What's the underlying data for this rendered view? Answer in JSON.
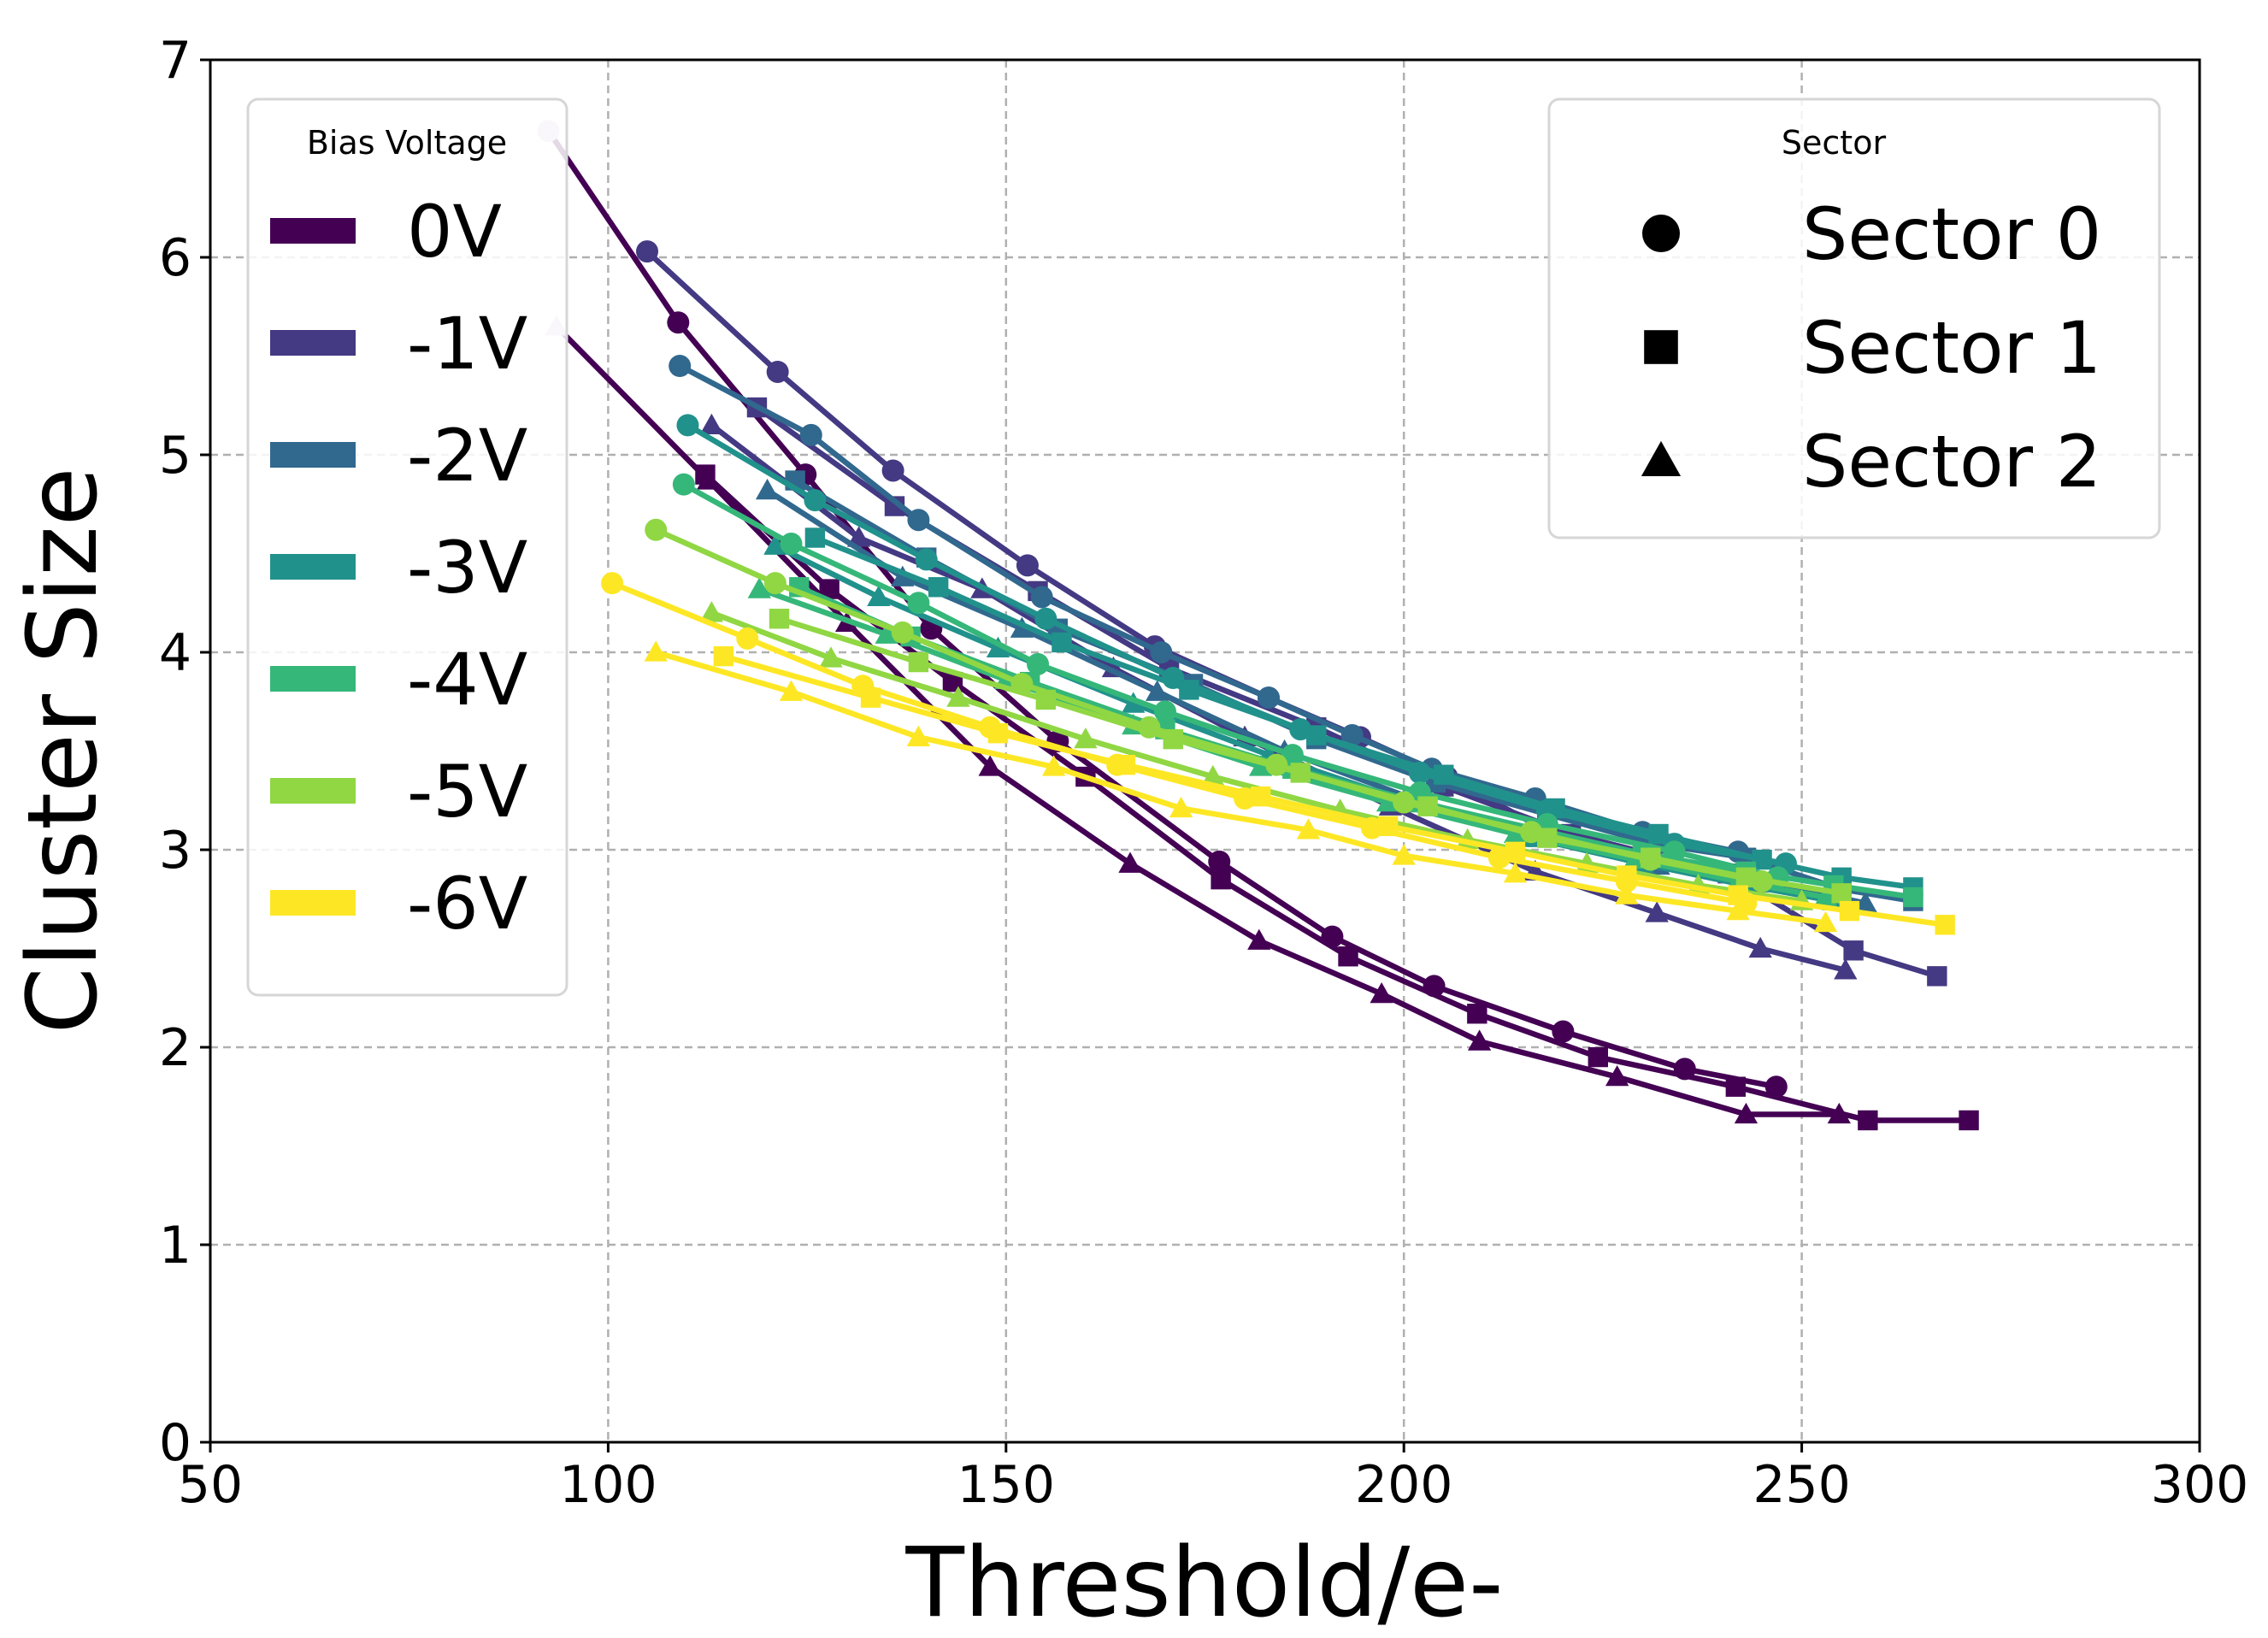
{
  "chart_data": {
    "type": "line",
    "xlabel": "Threshold/e-",
    "ylabel": "Cluster Size",
    "xlim": [
      50,
      300
    ],
    "ylim": [
      0,
      7
    ],
    "xticks": [
      "50",
      "100",
      "150",
      "200",
      "250",
      "300"
    ],
    "yticks": [
      "0",
      "1",
      "2",
      "3",
      "4",
      "5",
      "6",
      "7"
    ],
    "grid": true,
    "legends": [
      {
        "title": "Bias Voltage",
        "placement": "top-left",
        "entries": [
          {
            "label": "0V",
            "color": "#440154"
          },
          {
            "label": "-1V",
            "color": "#443983"
          },
          {
            "label": "-2V",
            "color": "#31688e"
          },
          {
            "label": "-3V",
            "color": "#21918c"
          },
          {
            "label": "-4V",
            "color": "#35b779"
          },
          {
            "label": "-5V",
            "color": "#90d743"
          },
          {
            "label": "-6V",
            "color": "#fde725"
          }
        ]
      },
      {
        "title": "Sector",
        "placement": "top-right",
        "entries": [
          {
            "label": "Sector 0",
            "marker": "circle"
          },
          {
            "label": "Sector 1",
            "marker": "square"
          },
          {
            "label": "Sector 2",
            "marker": "triangle"
          }
        ]
      }
    ],
    "series": [
      {
        "name": "0V Sector 0",
        "voltage": "0V",
        "sector": 0,
        "color": "#440154",
        "marker": "circle",
        "x": [
          92.5,
          108.8,
          124.8,
          140.6,
          156.5,
          176.8,
          191.0,
          203.8,
          220.0,
          235.3,
          246.8
        ],
        "y": [
          6.64,
          5.67,
          4.9,
          4.12,
          3.55,
          2.94,
          2.56,
          2.31,
          2.08,
          1.89,
          1.8
        ],
        "first_point_color": "#d8c8e2"
      },
      {
        "name": "0V Sector 1",
        "voltage": "0V",
        "sector": 1,
        "color": "#440154",
        "marker": "square",
        "x": [
          112.2,
          127.8,
          143.3,
          160.0,
          177.0,
          193.0,
          209.2,
          224.4,
          241.7,
          258.3,
          271.0
        ],
        "y": [
          4.9,
          4.32,
          3.85,
          3.37,
          2.85,
          2.46,
          2.17,
          1.95,
          1.8,
          1.63,
          1.63
        ]
      },
      {
        "name": "0V Sector 2",
        "voltage": "0V",
        "sector": 2,
        "color": "#440154",
        "marker": "triangle",
        "x": [
          93.5,
          112.6,
          130.0,
          148.0,
          165.6,
          181.8,
          197.2,
          209.5,
          226.8,
          243.0,
          254.7
        ],
        "y": [
          5.65,
          4.87,
          4.15,
          3.42,
          2.93,
          2.54,
          2.27,
          2.03,
          1.85,
          1.66,
          1.66
        ],
        "first_point_color": "#d8c8e2"
      },
      {
        "name": "-1V Sector 0",
        "voltage": "-1V",
        "sector": 0,
        "color": "#443983",
        "marker": "circle",
        "x": [
          104.9,
          121.3,
          135.8,
          152.7,
          168.7,
          183.0,
          194.5,
          205.4,
          219.2,
          230.5
        ],
        "y": [
          6.03,
          5.42,
          4.92,
          4.44,
          4.03,
          3.77,
          3.57,
          3.37,
          3.07,
          2.94
        ]
      },
      {
        "name": "-1V Sector 1",
        "voltage": "-1V",
        "sector": 1,
        "color": "#443983",
        "marker": "square",
        "x": [
          118.7,
          136.0,
          154.0,
          170.5,
          189.0,
          205.0,
          221.0,
          240.7,
          256.5,
          267.0
        ],
        "y": [
          5.24,
          4.74,
          4.31,
          3.92,
          3.62,
          3.32,
          3.08,
          2.88,
          2.49,
          2.36
        ]
      },
      {
        "name": "-1V Sector 2",
        "voltage": "-1V",
        "sector": 2,
        "color": "#443983",
        "marker": "triangle",
        "x": [
          113.0,
          131.5,
          147.0,
          163.5,
          180.0,
          198.3,
          216.5,
          231.8,
          244.8,
          255.5
        ],
        "y": [
          5.15,
          4.58,
          4.32,
          3.92,
          3.57,
          3.22,
          2.89,
          2.68,
          2.5,
          2.39
        ]
      },
      {
        "name": "-2V Sector 0",
        "voltage": "-2V",
        "sector": 0,
        "color": "#31688e",
        "marker": "circle",
        "x": [
          109.0,
          125.5,
          139.0,
          154.5,
          169.5,
          183.0,
          193.5,
          203.5,
          216.5,
          230.0,
          242.0
        ],
        "y": [
          5.45,
          5.1,
          4.67,
          4.28,
          4.0,
          3.77,
          3.58,
          3.41,
          3.26,
          3.09,
          2.99
        ]
      },
      {
        "name": "-2V Sector 1",
        "voltage": "-2V",
        "sector": 1,
        "color": "#31688e",
        "marker": "square",
        "x": [
          123.5,
          140.0,
          156.5,
          173.5,
          189.0,
          204.0,
          218.0,
          231.5,
          243.0,
          255.0,
          264.0
        ],
        "y": [
          4.87,
          4.48,
          4.12,
          3.84,
          3.56,
          3.34,
          3.18,
          3.03,
          2.96,
          2.8,
          2.74
        ]
      },
      {
        "name": "-2V Sector 2",
        "voltage": "-2V",
        "sector": 2,
        "color": "#31688e",
        "marker": "triangle",
        "x": [
          120.0,
          137.0,
          152.0,
          169.0,
          185.0,
          201.0,
          217.0,
          232.0,
          246.0,
          258.0
        ],
        "y": [
          4.82,
          4.38,
          4.12,
          3.8,
          3.5,
          3.26,
          3.06,
          2.92,
          2.83,
          2.73
        ]
      },
      {
        "name": "-3V Sector 0",
        "voltage": "-3V",
        "sector": 0,
        "color": "#21918c",
        "marker": "circle",
        "x": [
          110.0,
          126.0,
          140.0,
          155.0,
          171.0,
          187.0,
          202.0,
          218.0,
          234.0,
          248.0
        ],
        "y": [
          5.15,
          4.77,
          4.47,
          4.17,
          3.87,
          3.61,
          3.39,
          3.2,
          3.03,
          2.93
        ]
      },
      {
        "name": "-3V Sector 1",
        "voltage": "-3V",
        "sector": 1,
        "color": "#21918c",
        "marker": "square",
        "x": [
          126.0,
          141.5,
          157.0,
          173.0,
          189.0,
          205.0,
          219.0,
          232.0,
          245.0,
          255.0,
          264.0
        ],
        "y": [
          4.58,
          4.33,
          4.05,
          3.81,
          3.58,
          3.38,
          3.21,
          3.08,
          2.95,
          2.86,
          2.81
        ]
      },
      {
        "name": "-3V Sector 2",
        "voltage": "-3V",
        "sector": 2,
        "color": "#21918c",
        "marker": "triangle",
        "x": [
          121.0,
          134.0,
          149.0,
          166.0,
          183.0,
          200.0,
          216.0,
          230.0,
          243.0,
          254.0
        ],
        "y": [
          4.54,
          4.28,
          4.02,
          3.74,
          3.48,
          3.25,
          3.06,
          2.93,
          2.82,
          2.74
        ]
      },
      {
        "name": "-4V Sector 0",
        "voltage": "-4V",
        "sector": 0,
        "color": "#35b779",
        "marker": "circle",
        "x": [
          109.5,
          123.0,
          139.0,
          154.0,
          170.0,
          186.0,
          202.0,
          218.0,
          234.0,
          247.0
        ],
        "y": [
          4.85,
          4.55,
          4.25,
          3.94,
          3.7,
          3.48,
          3.29,
          3.13,
          2.99,
          2.86
        ]
      },
      {
        "name": "-4V Sector 1",
        "voltage": "-4V",
        "sector": 1,
        "color": "#35b779",
        "marker": "square",
        "x": [
          124.0,
          138.0,
          153.0,
          170.0,
          186.0,
          202.0,
          217.0,
          230.0,
          243.0,
          254.0,
          264.0
        ],
        "y": [
          4.33,
          4.08,
          3.85,
          3.61,
          3.41,
          3.24,
          3.1,
          2.98,
          2.89,
          2.82,
          2.76
        ]
      },
      {
        "name": "-4V Sector 2",
        "voltage": "-4V",
        "sector": 2,
        "color": "#35b779",
        "marker": "triangle",
        "x": [
          119.0,
          135.0,
          150.0,
          166.0,
          182.0,
          198.0,
          214.0,
          229.0,
          242.0,
          253.0
        ],
        "y": [
          4.32,
          4.09,
          3.86,
          3.63,
          3.42,
          3.24,
          3.08,
          2.95,
          2.84,
          2.76
        ]
      },
      {
        "name": "-5V Sector 0",
        "voltage": "-5V",
        "sector": 0,
        "color": "#90d743",
        "marker": "circle",
        "x": [
          106.0,
          121.0,
          137.0,
          152.0,
          168.0,
          184.0,
          200.0,
          216.0,
          231.0,
          245.0
        ],
        "y": [
          4.62,
          4.35,
          4.1,
          3.84,
          3.62,
          3.43,
          3.24,
          3.09,
          2.95,
          2.84
        ]
      },
      {
        "name": "-5V Sector 1",
        "voltage": "-5V",
        "sector": 1,
        "color": "#90d743",
        "marker": "square",
        "x": [
          121.5,
          139.0,
          155.0,
          171.0,
          187.0,
          203.0,
          218.0,
          231.0,
          243.0,
          255.0
        ],
        "y": [
          4.17,
          3.95,
          3.76,
          3.56,
          3.39,
          3.22,
          3.06,
          2.96,
          2.86,
          2.78
        ]
      },
      {
        "name": "-5V Sector 2",
        "voltage": "-5V",
        "sector": 2,
        "color": "#90d743",
        "marker": "triangle",
        "x": [
          113.0,
          128.0,
          144.0,
          160.0,
          176.0,
          192.0,
          208.0,
          223.0,
          237.0,
          250.0
        ],
        "y": [
          4.2,
          3.97,
          3.77,
          3.56,
          3.37,
          3.2,
          3.05,
          2.93,
          2.82,
          2.74
        ]
      },
      {
        "name": "-6V Sector 0",
        "voltage": "-6V",
        "sector": 0,
        "color": "#fde725",
        "marker": "circle",
        "x": [
          100.5,
          117.5,
          132.0,
          148.0,
          164.0,
          180.0,
          196.0,
          212.0,
          228.0,
          243.0
        ],
        "y": [
          4.35,
          4.07,
          3.83,
          3.62,
          3.43,
          3.26,
          3.11,
          2.96,
          2.84,
          2.73
        ]
      },
      {
        "name": "-6V Sector 1",
        "voltage": "-6V",
        "sector": 1,
        "color": "#fde725",
        "marker": "square",
        "x": [
          114.5,
          133.0,
          149.0,
          165.0,
          182.0,
          198.0,
          214.0,
          228.0,
          242.0,
          256.0,
          268.0
        ],
        "y": [
          3.98,
          3.77,
          3.59,
          3.43,
          3.27,
          3.12,
          2.99,
          2.87,
          2.77,
          2.69,
          2.62
        ]
      },
      {
        "name": "-6V Sector 2",
        "voltage": "-6V",
        "sector": 2,
        "color": "#fde725",
        "marker": "triangle",
        "x": [
          106.0,
          123.0,
          139.0,
          156.0,
          172.0,
          188.0,
          200.0,
          214.0,
          228.0,
          242.0,
          253.0
        ],
        "y": [
          4.0,
          3.8,
          3.57,
          3.42,
          3.21,
          3.1,
          2.97,
          2.88,
          2.77,
          2.69,
          2.63
        ]
      }
    ]
  }
}
